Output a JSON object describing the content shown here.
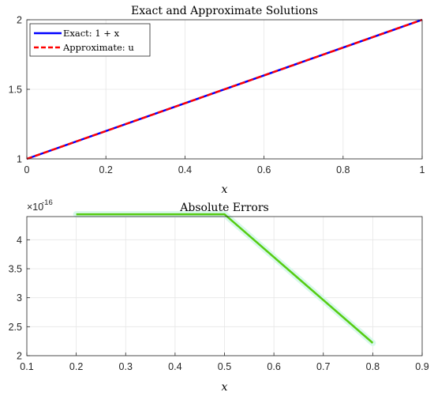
{
  "chart_data": [
    {
      "type": "line",
      "title": "Exact and Approximate Solutions",
      "xlabel": "x",
      "ylabel": "",
      "xlim": [
        0,
        1
      ],
      "ylim": [
        1,
        2
      ],
      "xticks": [
        "0",
        "0.2",
        "0.4",
        "0.6",
        "0.8",
        "1"
      ],
      "yticks": [
        "1",
        "1.5",
        "2"
      ],
      "grid": true,
      "legend_position": "top-left",
      "series": [
        {
          "name": "Exact: 1 + x",
          "x": [
            0,
            1
          ],
          "values": [
            1,
            2
          ],
          "color": "#0000ff",
          "style": "solid"
        },
        {
          "name": "Approximate: u",
          "x": [
            0,
            1
          ],
          "values": [
            1,
            2
          ],
          "color": "#ff0000",
          "style": "dashed"
        }
      ]
    },
    {
      "type": "line",
      "title": "Absolute Errors",
      "xlabel": "x",
      "ylabel": "",
      "y_exponent_base": "×10",
      "y_exponent": "-16",
      "xlim": [
        0.1,
        0.9
      ],
      "ylim": [
        2,
        4.4
      ],
      "xticks": [
        "0.1",
        "0.2",
        "0.3",
        "0.4",
        "0.5",
        "0.6",
        "0.7",
        "0.8",
        "0.9"
      ],
      "yticks": [
        "2",
        "2.5",
        "3",
        "3.5",
        "4"
      ],
      "grid": true,
      "series": [
        {
          "x": [
            0.2,
            0.5,
            0.8
          ],
          "values": [
            4.44,
            4.44,
            2.22
          ],
          "color": "#55cc11",
          "style": "solid"
        }
      ]
    }
  ]
}
